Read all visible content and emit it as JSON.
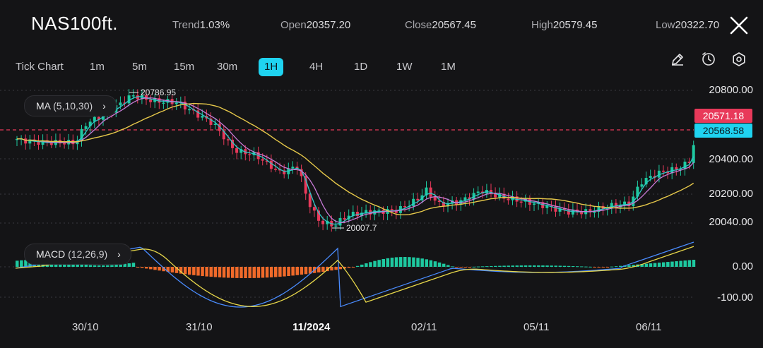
{
  "header": {
    "symbol": "NAS100ft.",
    "trend_label": "Trend",
    "trend_value": "1.03%",
    "open_label": "Open",
    "open_value": "20357.20",
    "close_label": "Close",
    "close_value": "20567.45",
    "high_label": "High",
    "high_value": "20579.45",
    "low_label": "Low",
    "low_value": "20322.70"
  },
  "timeframes": [
    "Tick Chart",
    "1m",
    "5m",
    "15m",
    "30m",
    "1H",
    "4H",
    "1D",
    "1W",
    "1M"
  ],
  "active_timeframe": "1H",
  "tools": [
    "pencil-icon",
    "timer-icon",
    "gear-icon"
  ],
  "ma_indicator": {
    "name": "MA",
    "params": "(5,10,30)"
  },
  "macd_indicator": {
    "name": "MACD",
    "params": "(12,26,9)"
  },
  "price_axis": [
    "20800.00",
    "20400.00",
    "20200.00",
    "20040.00"
  ],
  "price_tag_red": "20571.18",
  "price_tag_cyan": "20568.58",
  "macd_axis": [
    "0.00",
    "-100.00"
  ],
  "x_axis": [
    "30/10",
    "31/10",
    "11/2024",
    "02/11",
    "05/11",
    "06/11"
  ],
  "high_marker": "20786.95",
  "low_marker": "20007.7",
  "colors": {
    "up": "#1ec9a0",
    "down": "#e8395a",
    "accent": "#1fd3f0",
    "ma5": "#2ec9c9",
    "ma10": "#c77ad6",
    "ma30": "#e6c84a",
    "macd_line": "#4a8cff",
    "signal_line": "#e6d64a",
    "hist_neg": "#f06a2a"
  }
}
